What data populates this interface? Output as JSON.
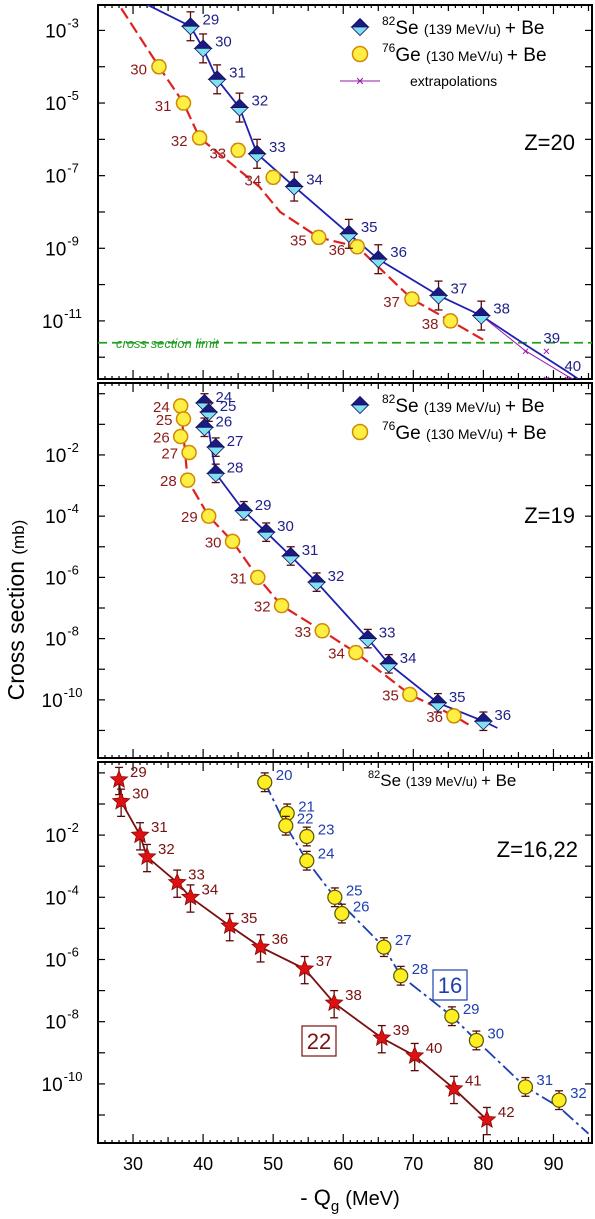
{
  "figure": {
    "ylabel_main": "Cross section",
    "ylabel_unit": "(mb)",
    "xlabel_sign": "- Q",
    "xlabel_sub": "g",
    "xlabel_unit": "(MeV)",
    "xticks": [
      "30",
      "40",
      "50",
      "60",
      "70",
      "80",
      "90"
    ],
    "xlim": [
      25,
      95.5
    ]
  },
  "colors": {
    "se_marker_top": "#1a1a80",
    "se_marker_bottom": "#7fe0f0",
    "se_line": "#1f1fb0",
    "se_label": "#1f1f8a",
    "ge_fill": "#ffee44",
    "ge_edge": "#d08a00",
    "ge_line": "#e02020",
    "ge_label": "#8b1a1a",
    "extrap": "#9a1aa8",
    "limit": "#22a022",
    "star": "#dd1111",
    "z22_line": "#7a1010",
    "z16_fill": "#ffee22",
    "z16_line": "#1f3fb0"
  },
  "panels": [
    {
      "id": "z20",
      "label": "Z=20",
      "yticks": [
        "10",
        "10",
        "10",
        "10",
        "10",
        "10"
      ],
      "ytick_exps": [
        "-3",
        "-5",
        "-7",
        "-9",
        "-11",
        ""
      ],
      "legend": [
        {
          "sup": "82",
          "name": "Se",
          "detail": "(139 MeV/u)",
          "tail": "+ Be"
        },
        {
          "sup": "76",
          "name": "Ge",
          "detail": "(130 MeV/u)",
          "tail": "+ Be"
        },
        {
          "name": "extrapolations"
        }
      ],
      "limit_label": "cross section limit",
      "limit_value": 2.5e-12
    },
    {
      "id": "z19",
      "label": "Z=19",
      "ytick_exps": [
        "-2",
        "-4",
        "-6",
        "-8",
        "-10"
      ],
      "legend": [
        {
          "sup": "82",
          "name": "Se",
          "detail": "(139 MeV/u)",
          "tail": "+ Be"
        },
        {
          "sup": "76",
          "name": "Ge",
          "detail": "(130 MeV/u)",
          "tail": "+ Be"
        }
      ]
    },
    {
      "id": "z1622",
      "label": "Z=16,22",
      "ytick_exps": [
        "-2",
        "-4",
        "-6",
        "-8",
        "-10"
      ],
      "legend": [
        {
          "sup": "82",
          "name": "Se",
          "detail": "(139 MeV/u)",
          "tail": "+ Be"
        }
      ],
      "box16": "16",
      "box22": "22"
    }
  ],
  "chart_data": [
    {
      "type": "scatter",
      "title": "Z=20",
      "xlabel": "- Qg (MeV)",
      "ylabel": "Cross section (mb)",
      "xlim": [
        25,
        95.5
      ],
      "ylim": [
        1e-13,
        0.01
      ],
      "yscale": "log",
      "series": [
        {
          "name": "82Se (139 MeV/u) + Be",
          "labels": [
            "29",
            "30",
            "31",
            "32",
            "33",
            "34",
            "35",
            "36",
            "37",
            "38"
          ],
          "x": [
            38.2,
            40.0,
            42.0,
            45.2,
            47.7,
            53.0,
            60.8,
            65.0,
            73.6,
            79.7
          ],
          "y": [
            0.0013,
            0.00032,
            4.5e-05,
            7.5e-06,
            4e-07,
            5e-08,
            2.5e-09,
            5e-10,
            5e-11,
            1.4e-11
          ]
        },
        {
          "name": "76Ge (130 MeV/u) + Be",
          "labels": [
            "30",
            "31",
            "32",
            "33",
            "34",
            "35",
            "36",
            "37",
            "38"
          ],
          "x": [
            33.7,
            37.2,
            39.5,
            45.0,
            50.0,
            56.5,
            62.0,
            69.8,
            75.3
          ],
          "y": [
            0.0001,
            1e-05,
            1.1e-06,
            5e-07,
            9e-08,
            2e-09,
            1.1e-09,
            4e-11,
            1e-11
          ]
        },
        {
          "name": "extrapolations",
          "labels": [
            "39",
            "40"
          ],
          "x": [
            86.0,
            89.0
          ],
          "y": [
            1.5e-12,
            2.5e-13
          ]
        }
      ]
    },
    {
      "type": "scatter",
      "title": "Z=19",
      "xlabel": "- Qg (MeV)",
      "ylabel": "Cross section (mb)",
      "xlim": [
        25,
        95.5
      ],
      "ylim": [
        1e-12,
        1.3
      ],
      "yscale": "log",
      "series": [
        {
          "name": "82Se (139 MeV/u) + Be",
          "labels": [
            "24",
            "25",
            "26",
            "27",
            "28",
            "29",
            "30",
            "31",
            "32",
            "33",
            "34",
            "35",
            "36"
          ],
          "x": [
            40.2,
            40.8,
            40.2,
            41.8,
            41.8,
            45.8,
            49.0,
            52.5,
            56.2,
            63.5,
            66.5,
            73.5,
            80.0
          ],
          "y": [
            0.5,
            0.25,
            0.08,
            0.018,
            0.0025,
            0.00015,
            3e-05,
            5e-06,
            7e-07,
            1e-08,
            1.5e-09,
            8e-11,
            2e-11
          ]
        },
        {
          "name": "76Ge (130 MeV/u) + Be",
          "labels": [
            "24",
            "25",
            "26",
            "27",
            "28",
            "29",
            "30",
            "31",
            "32",
            "33",
            "34",
            "35",
            "36"
          ],
          "x": [
            36.8,
            37.2,
            36.8,
            38.0,
            37.8,
            40.8,
            44.2,
            47.8,
            51.2,
            57.0,
            61.8,
            69.5,
            75.8
          ],
          "y": [
            0.4,
            0.15,
            0.04,
            0.012,
            0.0015,
            0.0001,
            1.5e-05,
            1e-06,
            1.2e-07,
            1.8e-08,
            3.5e-09,
            1.5e-10,
            3e-11
          ]
        }
      ]
    },
    {
      "type": "scatter",
      "title": "Z=16,22",
      "xlabel": "- Qg (MeV)",
      "ylabel": "Cross section (mb)",
      "xlim": [
        25,
        95.5
      ],
      "ylim": [
        1e-12,
        1.3
      ],
      "yscale": "log",
      "series": [
        {
          "name": "22",
          "labels": [
            "29",
            "30",
            "31",
            "32",
            "33",
            "34",
            "35",
            "36",
            "37",
            "38",
            "39",
            "40",
            "41",
            "42"
          ],
          "x": [
            28.0,
            28.3,
            31.0,
            32.0,
            36.3,
            38.2,
            43.8,
            48.2,
            54.5,
            58.7,
            65.5,
            70.2,
            75.8,
            80.5
          ],
          "y": [
            0.6,
            0.12,
            0.01,
            0.002,
            0.0003,
            0.0001,
            1.2e-05,
            2.5e-06,
            5e-07,
            4e-08,
            3e-09,
            8e-10,
            7e-11,
            7e-12
          ]
        },
        {
          "name": "16",
          "labels": [
            "20",
            "21",
            "22",
            "23",
            "24",
            "25",
            "26",
            "27",
            "28",
            "29",
            "30",
            "31",
            "32"
          ],
          "x": [
            48.8,
            52.0,
            51.8,
            54.8,
            54.8,
            58.8,
            59.8,
            65.8,
            68.2,
            75.5,
            79.0,
            86.0,
            90.8
          ],
          "y": [
            0.5,
            0.05,
            0.02,
            0.009,
            0.0015,
            0.0001,
            3e-05,
            2.5e-06,
            3e-07,
            1.5e-08,
            2.5e-09,
            8e-11,
            3e-11
          ]
        }
      ]
    }
  ]
}
